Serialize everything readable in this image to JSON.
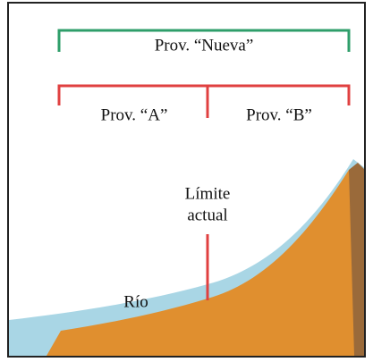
{
  "brackets": {
    "top": "Prov. “Nueva”",
    "left": "Prov. “A”",
    "right": "Prov. “B”"
  },
  "labels": {
    "boundary_line1": "Límite",
    "boundary_line2": "actual",
    "river": "Río"
  }
}
